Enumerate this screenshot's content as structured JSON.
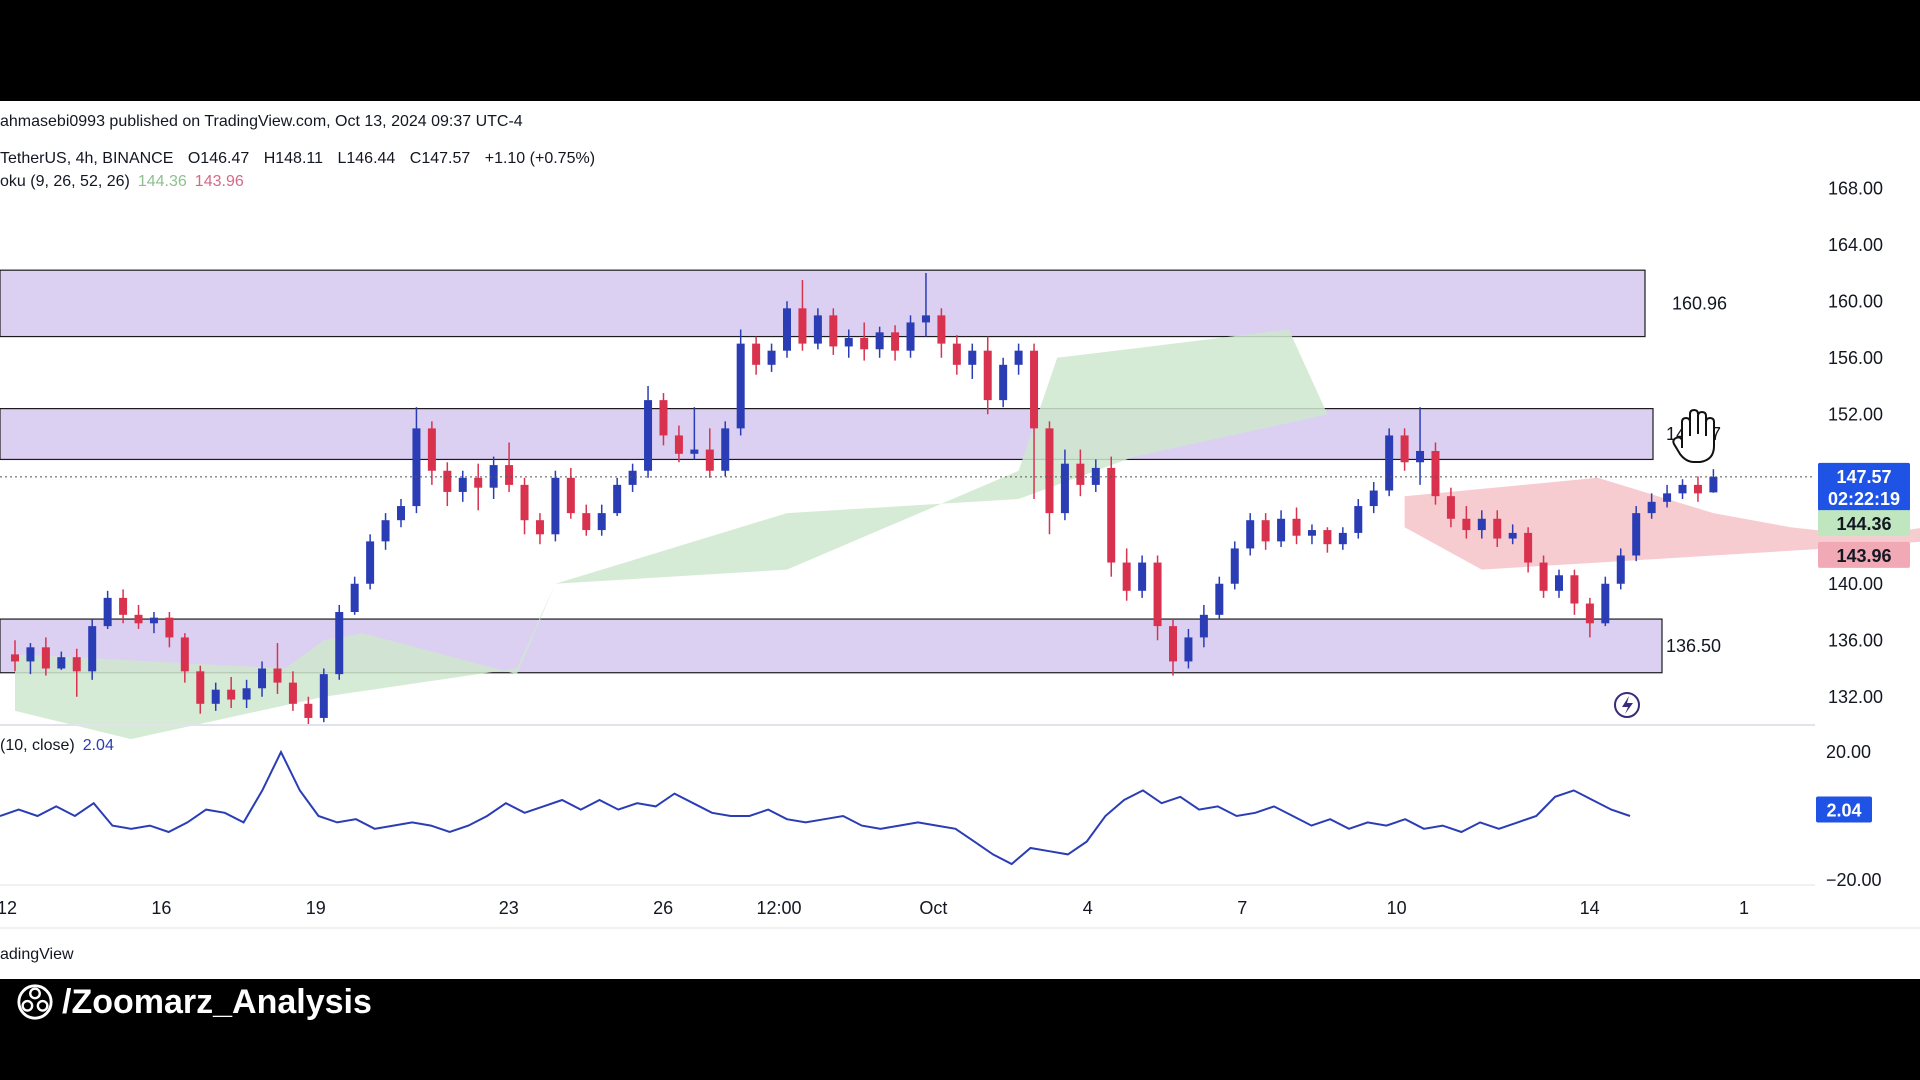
{
  "header": {
    "publish_line": "ahmasebi0993 published on TradingView.com, Oct 13, 2024 09:37 UTC-4",
    "symbol": "TetherUS, 4h, BINANCE",
    "open": "O146.47",
    "high": "H148.11",
    "low": "L146.44",
    "close": "C147.57",
    "change": "+1.10 (+0.75%)",
    "ichimoku_label": "oku (9, 26, 52, 26)",
    "ichimoku_val1": "144.36",
    "ichimoku_val2": "143.96"
  },
  "oscillator": {
    "label": "(10, close)",
    "value": "2.04",
    "badge": "2.04",
    "axis_top": "20.00",
    "axis_bottom": "−20.00"
  },
  "price_badges": {
    "last": "147.57",
    "countdown": "02:22:19",
    "kijun": "144.36",
    "tenkan": "143.96"
  },
  "levels": [
    "160.96",
    "14_.87",
    "136.50"
  ],
  "footer": {
    "brand": "adingView",
    "handle": "/Zoomarz_Analysis"
  },
  "colors": {
    "zone_fill": "#dcd0f2",
    "up_candle": "#2a3db5",
    "down_candle": "#d8324f",
    "cloud_green": "#cfe8cf",
    "cloud_red": "#f6c6cc",
    "oscillator_line": "#2a3db5"
  },
  "chart_data": [
    {
      "type": "candlestick",
      "symbol": "TetherUS, 4h, BINANCE",
      "ylim": [
        130.0,
        170.0
      ],
      "y_ticks": [
        "168.00",
        "164.00",
        "160.00",
        "156.00",
        "152.00",
        "148.00",
        "144.00",
        "140.00",
        "136.00",
        "132.00"
      ],
      "x_ticks": [
        "12",
        "16",
        "19",
        "23",
        "26",
        "12:00",
        "Oct",
        "4",
        "7",
        "10",
        "14",
        "1"
      ],
      "x_positions": [
        0,
        4,
        8,
        13,
        17,
        20,
        24,
        28,
        32,
        36,
        41,
        45
      ],
      "candles": [
        {
          "t": 0,
          "o": 135.0,
          "h": 136.0,
          "c": 134.5,
          "l": 133.8
        },
        {
          "t": 0.4,
          "o": 134.5,
          "h": 135.8,
          "c": 135.5,
          "l": 133.6
        },
        {
          "t": 0.8,
          "o": 135.5,
          "h": 136.2,
          "c": 134.0,
          "l": 133.5
        },
        {
          "t": 1.2,
          "o": 134.0,
          "h": 135.2,
          "c": 134.8,
          "l": 133.9
        },
        {
          "t": 1.6,
          "o": 134.8,
          "h": 135.4,
          "c": 133.8,
          "l": 132.0
        },
        {
          "t": 2.0,
          "o": 133.8,
          "h": 137.5,
          "c": 137.0,
          "l": 133.2
        },
        {
          "t": 2.4,
          "o": 137.0,
          "h": 139.5,
          "c": 139.0,
          "l": 136.8
        },
        {
          "t": 2.8,
          "o": 139.0,
          "h": 139.6,
          "c": 137.8,
          "l": 137.2
        },
        {
          "t": 3.2,
          "o": 137.8,
          "h": 138.5,
          "c": 137.2,
          "l": 136.8
        },
        {
          "t": 3.6,
          "o": 137.2,
          "h": 138.0,
          "c": 137.6,
          "l": 136.5
        },
        {
          "t": 4.0,
          "o": 137.6,
          "h": 138.0,
          "c": 136.2,
          "l": 135.5
        },
        {
          "t": 4.4,
          "o": 136.2,
          "h": 136.5,
          "c": 133.8,
          "l": 133.0
        },
        {
          "t": 4.8,
          "o": 133.8,
          "h": 134.2,
          "c": 131.5,
          "l": 130.8
        },
        {
          "t": 5.2,
          "o": 131.5,
          "h": 133.0,
          "c": 132.5,
          "l": 131.0
        },
        {
          "t": 5.6,
          "o": 132.5,
          "h": 133.4,
          "c": 131.8,
          "l": 131.2
        },
        {
          "t": 6.0,
          "o": 131.8,
          "h": 133.2,
          "c": 132.6,
          "l": 131.2
        },
        {
          "t": 6.4,
          "o": 132.6,
          "h": 134.5,
          "c": 134.0,
          "l": 132.0
        },
        {
          "t": 6.8,
          "o": 134.0,
          "h": 135.8,
          "c": 133.0,
          "l": 132.2
        },
        {
          "t": 7.2,
          "o": 133.0,
          "h": 133.8,
          "c": 131.5,
          "l": 131.0
        },
        {
          "t": 7.6,
          "o": 131.5,
          "h": 132.0,
          "c": 130.5,
          "l": 130.0
        },
        {
          "t": 8.0,
          "o": 130.5,
          "h": 134.0,
          "c": 133.6,
          "l": 130.2
        },
        {
          "t": 8.4,
          "o": 133.6,
          "h": 138.5,
          "c": 138.0,
          "l": 133.2
        },
        {
          "t": 8.8,
          "o": 138.0,
          "h": 140.5,
          "c": 140.0,
          "l": 137.8
        },
        {
          "t": 9.2,
          "o": 140.0,
          "h": 143.5,
          "c": 143.0,
          "l": 139.6
        },
        {
          "t": 9.6,
          "o": 143.0,
          "h": 145.0,
          "c": 144.5,
          "l": 142.4
        },
        {
          "t": 10.0,
          "o": 144.5,
          "h": 146.0,
          "c": 145.5,
          "l": 144.0
        },
        {
          "t": 10.4,
          "o": 145.5,
          "h": 152.5,
          "c": 151.0,
          "l": 145.0
        },
        {
          "t": 10.8,
          "o": 151.0,
          "h": 151.5,
          "c": 148.0,
          "l": 147.0
        },
        {
          "t": 11.2,
          "o": 148.0,
          "h": 148.6,
          "c": 146.5,
          "l": 145.5
        },
        {
          "t": 11.6,
          "o": 146.5,
          "h": 148.0,
          "c": 147.5,
          "l": 145.8
        },
        {
          "t": 12.0,
          "o": 147.5,
          "h": 148.5,
          "c": 146.8,
          "l": 145.2
        },
        {
          "t": 12.4,
          "o": 146.8,
          "h": 149.0,
          "c": 148.4,
          "l": 146.0
        },
        {
          "t": 12.8,
          "o": 148.4,
          "h": 150.0,
          "c": 147.0,
          "l": 146.5
        },
        {
          "t": 13.2,
          "o": 147.0,
          "h": 147.5,
          "c": 144.5,
          "l": 143.5
        },
        {
          "t": 13.6,
          "o": 144.5,
          "h": 145.0,
          "c": 143.5,
          "l": 142.8
        },
        {
          "t": 14.0,
          "o": 143.5,
          "h": 148.0,
          "c": 147.5,
          "l": 143.0
        },
        {
          "t": 14.4,
          "o": 147.5,
          "h": 148.2,
          "c": 145.0,
          "l": 144.6
        },
        {
          "t": 14.8,
          "o": 145.0,
          "h": 145.6,
          "c": 143.8,
          "l": 143.4
        },
        {
          "t": 15.2,
          "o": 143.8,
          "h": 145.6,
          "c": 145.0,
          "l": 143.4
        },
        {
          "t": 15.6,
          "o": 145.0,
          "h": 147.5,
          "c": 147.0,
          "l": 144.8
        },
        {
          "t": 16.0,
          "o": 147.0,
          "h": 148.5,
          "c": 148.0,
          "l": 146.5
        },
        {
          "t": 16.4,
          "o": 148.0,
          "h": 154.0,
          "c": 153.0,
          "l": 147.5
        },
        {
          "t": 16.8,
          "o": 153.0,
          "h": 153.5,
          "c": 150.5,
          "l": 149.8
        },
        {
          "t": 17.2,
          "o": 150.5,
          "h": 151.2,
          "c": 149.2,
          "l": 148.6
        },
        {
          "t": 17.6,
          "o": 149.2,
          "h": 152.5,
          "c": 149.5,
          "l": 148.8
        },
        {
          "t": 18.0,
          "o": 149.5,
          "h": 151.0,
          "c": 148.0,
          "l": 147.5
        },
        {
          "t": 18.4,
          "o": 148.0,
          "h": 151.5,
          "c": 151.0,
          "l": 147.6
        },
        {
          "t": 18.8,
          "o": 151.0,
          "h": 158.0,
          "c": 157.0,
          "l": 150.5
        },
        {
          "t": 19.2,
          "o": 157.0,
          "h": 157.5,
          "c": 155.5,
          "l": 154.8
        },
        {
          "t": 19.6,
          "o": 155.5,
          "h": 157.0,
          "c": 156.5,
          "l": 155.0
        },
        {
          "t": 20.0,
          "o": 156.5,
          "h": 160.0,
          "c": 159.5,
          "l": 156.0
        },
        {
          "t": 20.4,
          "o": 159.5,
          "h": 161.5,
          "c": 157.0,
          "l": 156.5
        },
        {
          "t": 20.8,
          "o": 157.0,
          "h": 159.5,
          "c": 159.0,
          "l": 156.6
        },
        {
          "t": 21.2,
          "o": 159.0,
          "h": 159.5,
          "c": 156.8,
          "l": 156.2
        },
        {
          "t": 21.6,
          "o": 156.8,
          "h": 158.0,
          "c": 157.4,
          "l": 156.0
        },
        {
          "t": 22.0,
          "o": 157.4,
          "h": 158.5,
          "c": 156.6,
          "l": 155.8
        },
        {
          "t": 22.4,
          "o": 156.6,
          "h": 158.2,
          "c": 157.8,
          "l": 156.0
        },
        {
          "t": 22.8,
          "o": 157.8,
          "h": 158.3,
          "c": 156.5,
          "l": 155.8
        },
        {
          "t": 23.2,
          "o": 156.5,
          "h": 159.0,
          "c": 158.5,
          "l": 156.0
        },
        {
          "t": 23.6,
          "o": 158.5,
          "h": 162.0,
          "c": 159.0,
          "l": 157.5
        },
        {
          "t": 24.0,
          "o": 159.0,
          "h": 159.5,
          "c": 157.0,
          "l": 156.0
        },
        {
          "t": 24.4,
          "o": 157.0,
          "h": 157.6,
          "c": 155.5,
          "l": 154.8
        },
        {
          "t": 24.8,
          "o": 155.5,
          "h": 157.0,
          "c": 156.5,
          "l": 154.5
        },
        {
          "t": 25.2,
          "o": 156.5,
          "h": 157.5,
          "c": 153.0,
          "l": 152.0
        },
        {
          "t": 25.6,
          "o": 153.0,
          "h": 156.0,
          "c": 155.5,
          "l": 152.5
        },
        {
          "t": 26.0,
          "o": 155.5,
          "h": 157.0,
          "c": 156.5,
          "l": 154.8
        },
        {
          "t": 26.4,
          "o": 156.5,
          "h": 157.0,
          "c": 151.0,
          "l": 146.0
        },
        {
          "t": 26.8,
          "o": 151.0,
          "h": 151.5,
          "c": 145.0,
          "l": 143.5
        },
        {
          "t": 27.2,
          "o": 145.0,
          "h": 149.5,
          "c": 148.5,
          "l": 144.5
        },
        {
          "t": 27.6,
          "o": 148.5,
          "h": 149.5,
          "c": 147.0,
          "l": 146.2
        },
        {
          "t": 28.0,
          "o": 147.0,
          "h": 148.8,
          "c": 148.2,
          "l": 146.5
        },
        {
          "t": 28.4,
          "o": 148.2,
          "h": 149.0,
          "c": 141.5,
          "l": 140.5
        },
        {
          "t": 28.8,
          "o": 141.5,
          "h": 142.5,
          "c": 139.5,
          "l": 138.8
        },
        {
          "t": 29.2,
          "o": 139.5,
          "h": 142.0,
          "c": 141.5,
          "l": 139.0
        },
        {
          "t": 29.6,
          "o": 141.5,
          "h": 142.0,
          "c": 137.0,
          "l": 136.0
        },
        {
          "t": 30.0,
          "o": 137.0,
          "h": 137.5,
          "c": 134.5,
          "l": 133.5
        },
        {
          "t": 30.4,
          "o": 134.5,
          "h": 136.8,
          "c": 136.2,
          "l": 134.0
        },
        {
          "t": 30.8,
          "o": 136.2,
          "h": 138.5,
          "c": 137.8,
          "l": 135.5
        },
        {
          "t": 31.2,
          "o": 137.8,
          "h": 140.5,
          "c": 140.0,
          "l": 137.5
        },
        {
          "t": 31.6,
          "o": 140.0,
          "h": 143.0,
          "c": 142.5,
          "l": 139.6
        },
        {
          "t": 32.0,
          "o": 142.5,
          "h": 145.0,
          "c": 144.5,
          "l": 142.0
        },
        {
          "t": 32.4,
          "o": 144.5,
          "h": 145.0,
          "c": 143.0,
          "l": 142.4
        },
        {
          "t": 32.8,
          "o": 143.0,
          "h": 145.2,
          "c": 144.6,
          "l": 142.6
        },
        {
          "t": 33.2,
          "o": 144.6,
          "h": 145.4,
          "c": 143.4,
          "l": 142.8
        },
        {
          "t": 33.6,
          "o": 143.4,
          "h": 144.2,
          "c": 143.8,
          "l": 142.8
        },
        {
          "t": 34.0,
          "o": 143.8,
          "h": 144.0,
          "c": 142.8,
          "l": 142.2
        },
        {
          "t": 34.4,
          "o": 142.8,
          "h": 144.0,
          "c": 143.6,
          "l": 142.4
        },
        {
          "t": 34.8,
          "o": 143.6,
          "h": 146.0,
          "c": 145.5,
          "l": 143.2
        },
        {
          "t": 35.2,
          "o": 145.5,
          "h": 147.2,
          "c": 146.6,
          "l": 145.0
        },
        {
          "t": 35.6,
          "o": 146.6,
          "h": 151.0,
          "c": 150.5,
          "l": 146.2
        },
        {
          "t": 36.0,
          "o": 150.5,
          "h": 151.0,
          "c": 148.6,
          "l": 148.0
        },
        {
          "t": 36.4,
          "o": 148.6,
          "h": 152.5,
          "c": 149.4,
          "l": 147.0
        },
        {
          "t": 36.8,
          "o": 149.4,
          "h": 150.0,
          "c": 146.2,
          "l": 145.6
        },
        {
          "t": 37.2,
          "o": 146.2,
          "h": 146.8,
          "c": 144.6,
          "l": 144.0
        },
        {
          "t": 37.6,
          "o": 144.6,
          "h": 145.5,
          "c": 143.8,
          "l": 143.2
        },
        {
          "t": 38.0,
          "o": 143.8,
          "h": 145.2,
          "c": 144.6,
          "l": 143.2
        },
        {
          "t": 38.4,
          "o": 144.6,
          "h": 145.2,
          "c": 143.2,
          "l": 142.6
        },
        {
          "t": 38.8,
          "o": 143.2,
          "h": 144.2,
          "c": 143.6,
          "l": 142.8
        },
        {
          "t": 39.2,
          "o": 143.6,
          "h": 144.0,
          "c": 141.5,
          "l": 140.8
        },
        {
          "t": 39.6,
          "o": 141.5,
          "h": 142.0,
          "c": 139.5,
          "l": 139.0
        },
        {
          "t": 40.0,
          "o": 139.5,
          "h": 141.0,
          "c": 140.6,
          "l": 139.0
        },
        {
          "t": 40.4,
          "o": 140.6,
          "h": 141.0,
          "c": 138.6,
          "l": 137.8
        },
        {
          "t": 40.8,
          "o": 138.6,
          "h": 139.0,
          "c": 137.2,
          "l": 136.2
        },
        {
          "t": 41.2,
          "o": 137.2,
          "h": 140.5,
          "c": 140.0,
          "l": 137.0
        },
        {
          "t": 41.6,
          "o": 140.0,
          "h": 142.5,
          "c": 142.0,
          "l": 139.6
        },
        {
          "t": 42.0,
          "o": 142.0,
          "h": 145.5,
          "c": 145.0,
          "l": 141.6
        },
        {
          "t": 42.4,
          "o": 145.0,
          "h": 146.4,
          "c": 145.8,
          "l": 144.6
        },
        {
          "t": 42.8,
          "o": 145.8,
          "h": 147.0,
          "c": 146.4,
          "l": 145.4
        },
        {
          "t": 43.2,
          "o": 146.4,
          "h": 147.4,
          "c": 147.0,
          "l": 146.0
        },
        {
          "t": 43.6,
          "o": 147.0,
          "h": 147.6,
          "c": 146.4,
          "l": 145.8
        },
        {
          "t": 44.0,
          "o": 146.47,
          "h": 148.11,
          "c": 147.57,
          "l": 146.44
        }
      ],
      "zones": [
        {
          "low": 157.5,
          "high": 162.2,
          "label": "160.96"
        },
        {
          "low": 148.8,
          "high": 152.4,
          "label": "14_.87"
        },
        {
          "low": 133.7,
          "high": 137.5,
          "label": "136.50"
        }
      ]
    },
    {
      "type": "line",
      "title": "(10, close)",
      "ylim": [
        -20,
        20
      ],
      "y_ticks": [
        "20.00",
        "−20.00"
      ],
      "values": [
        0,
        2,
        0,
        3,
        0,
        4,
        -3,
        -4,
        -3,
        -5,
        -2,
        2,
        1,
        -2,
        8,
        20,
        8,
        0,
        -2,
        -1,
        -4,
        -3,
        -2,
        -3,
        -5,
        -3,
        0,
        4,
        1,
        3,
        5,
        2,
        5,
        2,
        4,
        3,
        7,
        4,
        1,
        0,
        0,
        2,
        -1,
        -2,
        -1,
        0,
        -3,
        -4,
        -3,
        -2,
        -3,
        -4,
        -8,
        -12,
        -15,
        -10,
        -11,
        -12,
        -8,
        0,
        5,
        8,
        4,
        6,
        2,
        3,
        0,
        1,
        3,
        0,
        -3,
        -1,
        -4,
        -2,
        -3,
        -1,
        -4,
        -3,
        -5,
        -2,
        -4,
        -2,
        0,
        6,
        8,
        5,
        2,
        0
      ],
      "last_value": 2.04
    }
  ]
}
